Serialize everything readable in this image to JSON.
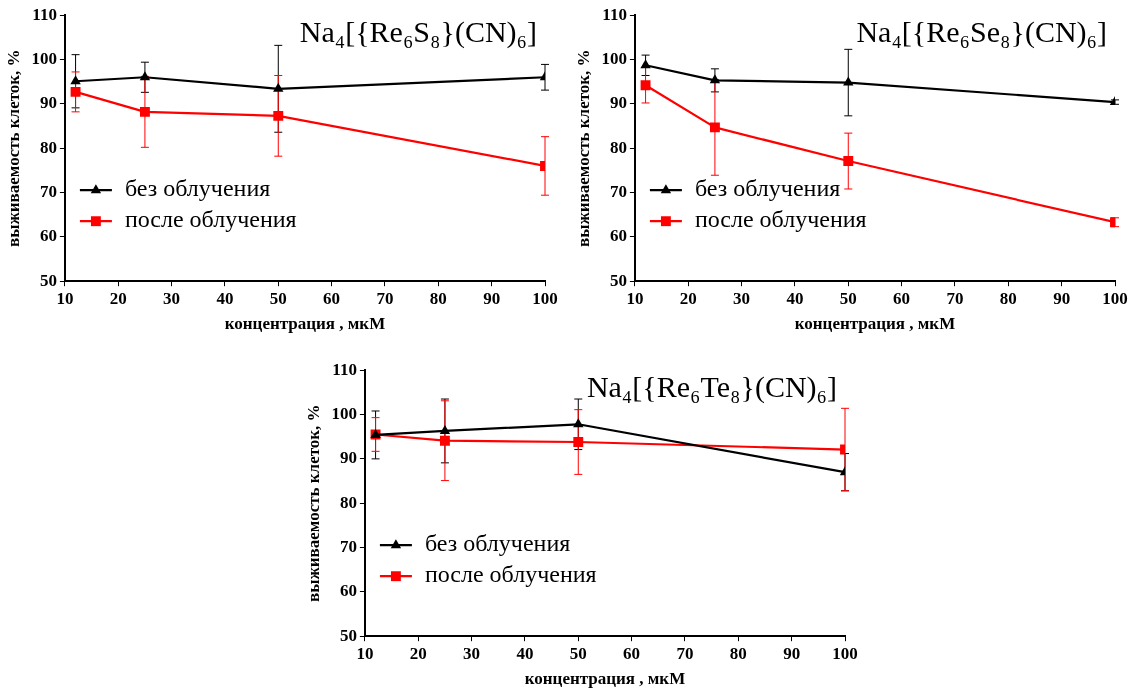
{
  "chart_data": [
    {
      "type": "line",
      "title": "Na₄[{Re₆S₈}(CN)₆]",
      "xlabel": "концентрация , мкМ",
      "ylabel": "выживаемость клеток, %",
      "x": [
        12,
        25,
        50,
        100
      ],
      "xlim": [
        10,
        100
      ],
      "xticks": [
        10,
        20,
        30,
        40,
        50,
        60,
        70,
        80,
        90,
        100
      ],
      "ylim": [
        50,
        110
      ],
      "yticks": [
        50,
        60,
        70,
        80,
        90,
        100,
        110
      ],
      "grid": false,
      "legend": "bottom left",
      "line_style": "solid",
      "series": [
        {
          "name": "без облучения",
          "color": "#000000",
          "marker": "triangle",
          "values": [
            95.1,
            96,
            93.4,
            96
          ],
          "errors": [
            6,
            3.4,
            9.8,
            2.9
          ]
        },
        {
          "name": "после облучения",
          "color": "#ff0000",
          "marker": "square",
          "values": [
            92.7,
            88.2,
            87.3,
            76
          ],
          "errors": [
            4.5,
            8,
            9.1,
            6.6
          ]
        }
      ]
    },
    {
      "type": "line",
      "title": "Na₄[{Re₆Se₈}(CN)₆]",
      "xlabel": "концентрация , мкМ",
      "ylabel": "выживаемость клеток, %",
      "x": [
        12,
        25,
        50,
        100
      ],
      "xlim": [
        10,
        100
      ],
      "xticks": [
        10,
        20,
        30,
        40,
        50,
        60,
        70,
        80,
        90,
        100
      ],
      "ylim": [
        50,
        110
      ],
      "yticks": [
        50,
        60,
        70,
        80,
        90,
        100,
        110
      ],
      "grid": false,
      "legend": "bottom left",
      "line_style": "solid",
      "series": [
        {
          "name": "без облучения",
          "color": "#000000",
          "marker": "triangle",
          "values": [
            98.7,
            95.3,
            94.8,
            90.4
          ],
          "errors": [
            2.3,
            2.6,
            7.5,
            0.5
          ]
        },
        {
          "name": "после облучения",
          "color": "#ff0000",
          "marker": "square",
          "values": [
            94.2,
            84.7,
            77.1,
            63.3
          ],
          "errors": [
            4,
            10.8,
            6.3,
            1
          ]
        }
      ]
    },
    {
      "type": "line",
      "title": "Na₄[{Re₆Te₈}(CN)₆]",
      "xlabel": "концентрация , мкМ",
      "ylabel": "выживаемость клеток, %",
      "x": [
        12,
        25,
        50,
        100
      ],
      "xlim": [
        10,
        100
      ],
      "xticks": [
        10,
        20,
        30,
        40,
        50,
        60,
        70,
        80,
        90,
        100
      ],
      "ylim": [
        50,
        110
      ],
      "yticks": [
        50,
        60,
        70,
        80,
        90,
        100,
        110
      ],
      "grid": false,
      "legend": "bottom left",
      "line_style": "solid",
      "series": [
        {
          "name": "без облучения",
          "color": "#000000",
          "marker": "triangle",
          "values": [
            95.4,
            96.3,
            97.8,
            87
          ],
          "errors": [
            5.4,
            7.2,
            5.7,
            4.2
          ]
        },
        {
          "name": "после облучения",
          "color": "#ff0000",
          "marker": "square",
          "values": [
            95.5,
            94.1,
            93.8,
            92.1
          ],
          "errors": [
            3.8,
            9,
            7.3,
            9.3
          ]
        }
      ]
    }
  ]
}
